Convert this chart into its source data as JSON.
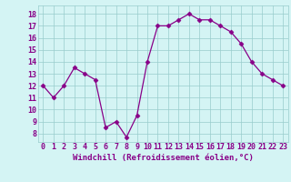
{
  "x": [
    0,
    1,
    2,
    3,
    4,
    5,
    6,
    7,
    8,
    9,
    10,
    11,
    12,
    13,
    14,
    15,
    16,
    17,
    18,
    19,
    20,
    21,
    22,
    23
  ],
  "y": [
    12,
    11,
    12,
    13.5,
    13,
    12.5,
    8.5,
    9.0,
    7.7,
    9.5,
    14.0,
    17.0,
    17.0,
    17.5,
    18.0,
    17.5,
    17.5,
    17.0,
    16.5,
    15.5,
    14.0,
    13.0,
    12.5,
    12.0
  ],
  "line_color": "#880088",
  "marker": "D",
  "marker_size": 2.5,
  "bg_color": "#d4f4f4",
  "grid_color": "#99cccc",
  "xlabel": "Windchill (Refroidissement éolien,°C)",
  "xlabel_color": "#880088",
  "xlabel_fontsize": 6.5,
  "ylabel_ticks": [
    8,
    9,
    10,
    11,
    12,
    13,
    14,
    15,
    16,
    17,
    18
  ],
  "ylim": [
    7.3,
    18.7
  ],
  "xlim": [
    -0.5,
    23.5
  ],
  "tick_fontsize": 6,
  "axis_label_color": "#880088"
}
